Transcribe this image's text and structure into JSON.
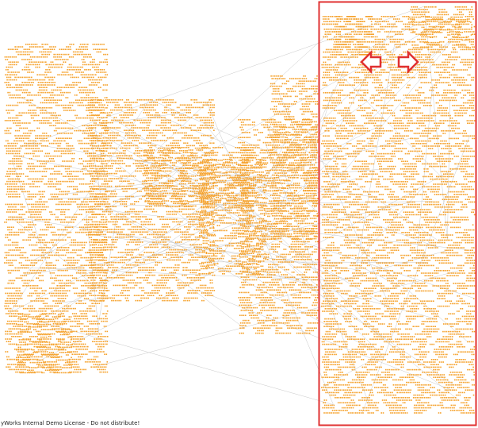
{
  "watermark": {
    "text": "yWorks Internal Demo License - Do not distribute!"
  },
  "colors": {
    "background": "#ffffff",
    "node_fill": "#f5a12a",
    "node_stroke": "#e08a10",
    "edge": "#c8c8c8",
    "selection_border": "#e03030",
    "handle_fill": "#ffffff",
    "handle_stroke": "#e03030"
  },
  "icons": {
    "left_arrow": "arrow-left-icon",
    "right_arrow": "arrow-right-icon"
  }
}
